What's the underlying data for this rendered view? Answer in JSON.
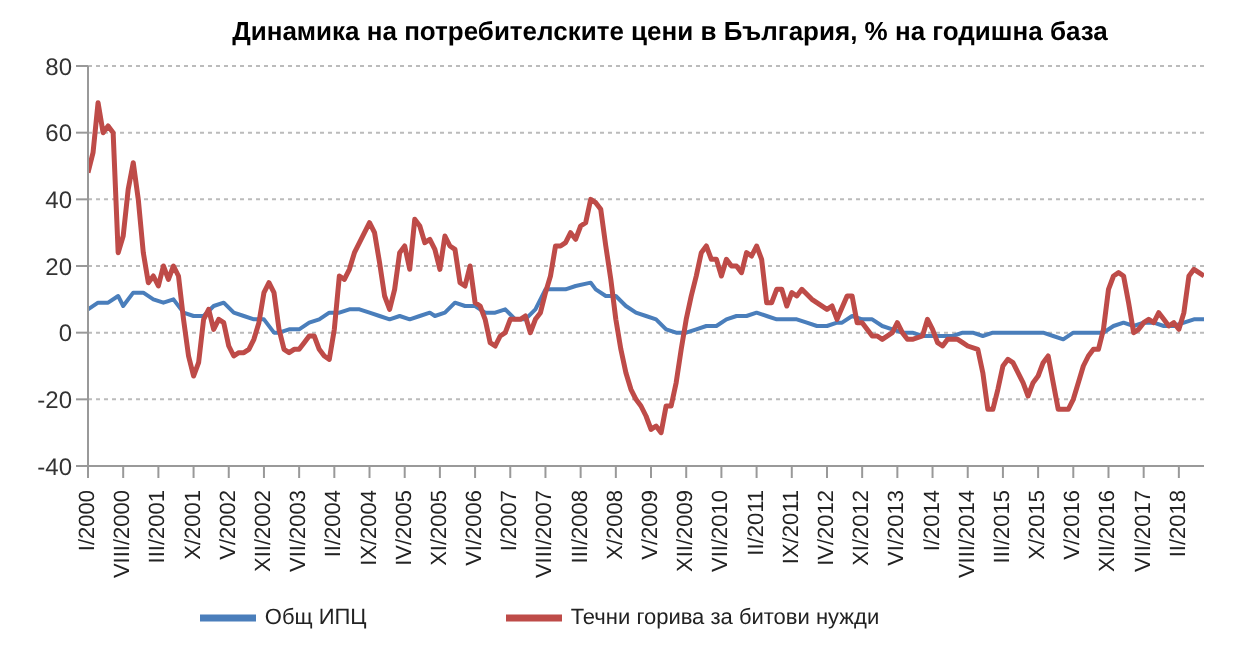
{
  "chart_data": {
    "type": "line",
    "title": "Динамика на потребителските цени в България, % на годишна база",
    "xlim": [
      "2000-01",
      "2018-07"
    ],
    "xticks": [
      {
        "value": "2000-01",
        "label": "I/2000"
      },
      {
        "value": "2000-08",
        "label": "VIII/2000"
      },
      {
        "value": "2001-03",
        "label": "III/2001"
      },
      {
        "value": "2001-10",
        "label": "X/2001"
      },
      {
        "value": "2002-05",
        "label": "V/2002"
      },
      {
        "value": "2002-12",
        "label": "XII/2002"
      },
      {
        "value": "2003-07",
        "label": "VII/2003"
      },
      {
        "value": "2004-02",
        "label": "II/2004"
      },
      {
        "value": "2004-09",
        "label": "IX/2004"
      },
      {
        "value": "2005-04",
        "label": "IV/2005"
      },
      {
        "value": "2005-11",
        "label": "XI/2005"
      },
      {
        "value": "2006-06",
        "label": "VI/2006"
      },
      {
        "value": "2007-01",
        "label": "I/2007"
      },
      {
        "value": "2007-08",
        "label": "VIII/2007"
      },
      {
        "value": "2008-03",
        "label": "III/2008"
      },
      {
        "value": "2008-10",
        "label": "X/2008"
      },
      {
        "value": "2009-05",
        "label": "V/2009"
      },
      {
        "value": "2009-12",
        "label": "XII/2009"
      },
      {
        "value": "2010-07",
        "label": "VII/2010"
      },
      {
        "value": "2011-02",
        "label": "II/2011"
      },
      {
        "value": "2011-09",
        "label": "IX/2011"
      },
      {
        "value": "2012-04",
        "label": "IV/2012"
      },
      {
        "value": "2012-11",
        "label": "XI/2012"
      },
      {
        "value": "2013-06",
        "label": "VI/2013"
      },
      {
        "value": "2014-01",
        "label": "I/2014"
      },
      {
        "value": "2014-08",
        "label": "VIII/2014"
      },
      {
        "value": "2015-03",
        "label": "III/2015"
      },
      {
        "value": "2015-10",
        "label": "X/2015"
      },
      {
        "value": "2016-05",
        "label": "V/2016"
      },
      {
        "value": "2016-12",
        "label": "XII/2016"
      },
      {
        "value": "2017-07",
        "label": "VII/2017"
      },
      {
        "value": "2018-02",
        "label": "II/2018"
      }
    ],
    "ylim": [
      -40,
      80
    ],
    "yticks": [
      -40,
      -20,
      0,
      20,
      40,
      60,
      80
    ],
    "grid": "y",
    "legend": "bottom",
    "marker": "none",
    "line_style": "solid",
    "series": [
      {
        "name": "Общ ИПЦ",
        "color": "#4a7ebb",
        "x": [
          "2000-01",
          "2000-03",
          "2000-05",
          "2000-07",
          "2000-08",
          "2000-10",
          "2000-12",
          "2001-02",
          "2001-04",
          "2001-06",
          "2001-08",
          "2001-10",
          "2001-12",
          "2002-02",
          "2002-04",
          "2002-06",
          "2002-08",
          "2002-10",
          "2002-12",
          "2003-02",
          "2003-03",
          "2003-05",
          "2003-07",
          "2003-09",
          "2003-11",
          "2004-01",
          "2004-03",
          "2004-05",
          "2004-07",
          "2004-09",
          "2004-11",
          "2005-01",
          "2005-03",
          "2005-05",
          "2005-07",
          "2005-09",
          "2005-10",
          "2005-12",
          "2006-02",
          "2006-04",
          "2006-06",
          "2006-08",
          "2006-10",
          "2006-12",
          "2007-02",
          "2007-04",
          "2007-06",
          "2007-08",
          "2007-10",
          "2007-12",
          "2008-02",
          "2008-05",
          "2008-06",
          "2008-08",
          "2008-10",
          "2008-12",
          "2009-02",
          "2009-04",
          "2009-06",
          "2009-08",
          "2009-10",
          "2009-12",
          "2010-02",
          "2010-04",
          "2010-06",
          "2010-08",
          "2010-10",
          "2010-12",
          "2011-02",
          "2011-04",
          "2011-06",
          "2011-08",
          "2011-10",
          "2011-12",
          "2012-02",
          "2012-04",
          "2012-06",
          "2012-07",
          "2012-09",
          "2012-11",
          "2013-01",
          "2013-03",
          "2013-05",
          "2013-07",
          "2013-09",
          "2013-11",
          "2014-01",
          "2014-03",
          "2014-05",
          "2014-07",
          "2014-09",
          "2014-11",
          "2015-01",
          "2015-03",
          "2015-05",
          "2015-07",
          "2015-09",
          "2015-11",
          "2016-01",
          "2016-03",
          "2016-05",
          "2016-07",
          "2016-09",
          "2016-11",
          "2017-01",
          "2017-03",
          "2017-05",
          "2017-07",
          "2017-09",
          "2017-11",
          "2018-01",
          "2018-03",
          "2018-05",
          "2018-07"
        ],
        "values": [
          7,
          9,
          9,
          11,
          8,
          12,
          12,
          10,
          9,
          10,
          6,
          5,
          5,
          8,
          9,
          6,
          5,
          4,
          4,
          0,
          0,
          1,
          1,
          3,
          4,
          6,
          6,
          7,
          7,
          6,
          5,
          4,
          5,
          4,
          5,
          6,
          5,
          6,
          9,
          8,
          8,
          6,
          6,
          7,
          4,
          4,
          7,
          13,
          13,
          13,
          14,
          15,
          13,
          11,
          11,
          8,
          6,
          5,
          4,
          1,
          0,
          0,
          1,
          2,
          2,
          4,
          5,
          5,
          6,
          5,
          4,
          4,
          4,
          3,
          2,
          2,
          3,
          3,
          5,
          4,
          4,
          2,
          1,
          0,
          0,
          -1,
          -1,
          -1,
          -1,
          0,
          0,
          -1,
          0,
          0,
          0,
          0,
          0,
          0,
          -1,
          -2,
          0,
          0,
          0,
          0,
          2,
          3,
          2,
          3,
          3,
          2,
          2,
          3,
          4,
          4
        ]
      },
      {
        "name": "Течни горива за битови нужди",
        "color": "#be4b48",
        "x": [
          "2000-01",
          "2000-02",
          "2000-03",
          "2000-04",
          "2000-05",
          "2000-06",
          "2000-07",
          "2000-08",
          "2000-09",
          "2000-10",
          "2000-11",
          "2000-12",
          "2001-01",
          "2001-02",
          "2001-03",
          "2001-04",
          "2001-05",
          "2001-06",
          "2001-07",
          "2001-08",
          "2001-09",
          "2001-10",
          "2001-11",
          "2001-12",
          "2002-01",
          "2002-02",
          "2002-03",
          "2002-04",
          "2002-05",
          "2002-06",
          "2002-07",
          "2002-08",
          "2002-09",
          "2002-10",
          "2002-11",
          "2002-12",
          "2003-01",
          "2003-02",
          "2003-03",
          "2003-04",
          "2003-05",
          "2003-06",
          "2003-07",
          "2003-08",
          "2003-09",
          "2003-10",
          "2003-11",
          "2003-12",
          "2004-01",
          "2004-02",
          "2004-03",
          "2004-04",
          "2004-05",
          "2004-06",
          "2004-07",
          "2004-08",
          "2004-09",
          "2004-10",
          "2004-11",
          "2004-12",
          "2005-01",
          "2005-02",
          "2005-03",
          "2005-04",
          "2005-05",
          "2005-06",
          "2005-07",
          "2005-08",
          "2005-09",
          "2005-10",
          "2005-11",
          "2005-12",
          "2006-01",
          "2006-02",
          "2006-03",
          "2006-04",
          "2006-05",
          "2006-06",
          "2006-07",
          "2006-08",
          "2006-09",
          "2006-10",
          "2006-11",
          "2006-12",
          "2007-01",
          "2007-02",
          "2007-03",
          "2007-04",
          "2007-05",
          "2007-06",
          "2007-07",
          "2007-08",
          "2007-09",
          "2007-10",
          "2007-11",
          "2007-12",
          "2008-01",
          "2008-02",
          "2008-03",
          "2008-04",
          "2008-05",
          "2008-06",
          "2008-07",
          "2008-08",
          "2008-09",
          "2008-10",
          "2008-11",
          "2008-12",
          "2009-01",
          "2009-02",
          "2009-03",
          "2009-04",
          "2009-05",
          "2009-06",
          "2009-07",
          "2009-08",
          "2009-09",
          "2009-10",
          "2009-11",
          "2009-12",
          "2010-01",
          "2010-02",
          "2010-03",
          "2010-04",
          "2010-05",
          "2010-06",
          "2010-07",
          "2010-08",
          "2010-09",
          "2010-10",
          "2010-11",
          "2010-12",
          "2011-01",
          "2011-02",
          "2011-03",
          "2011-04",
          "2011-05",
          "2011-06",
          "2011-07",
          "2011-08",
          "2011-09",
          "2011-10",
          "2011-11",
          "2012-01",
          "2012-04",
          "2012-05",
          "2012-06",
          "2012-08",
          "2012-09",
          "2012-10",
          "2012-11",
          "2013-01",
          "2013-02",
          "2013-03",
          "2013-05",
          "2013-06",
          "2013-07",
          "2013-08",
          "2013-09",
          "2013-11",
          "2013-12",
          "2014-01",
          "2014-02",
          "2014-03",
          "2014-04",
          "2014-05",
          "2014-06",
          "2014-07",
          "2014-08",
          "2014-10",
          "2014-11",
          "2014-12",
          "2015-01",
          "2015-02",
          "2015-03",
          "2015-04",
          "2015-05",
          "2015-06",
          "2015-07",
          "2015-08",
          "2015-09",
          "2015-10",
          "2015-11",
          "2015-12",
          "2016-01",
          "2016-02",
          "2016-03",
          "2016-04",
          "2016-05",
          "2016-06",
          "2016-07",
          "2016-08",
          "2016-09",
          "2016-10",
          "2016-11",
          "2016-12",
          "2017-01",
          "2017-02",
          "2017-03",
          "2017-04",
          "2017-05",
          "2017-06",
          "2017-07",
          "2017-08",
          "2017-09",
          "2017-10",
          "2017-11",
          "2017-12",
          "2018-01",
          "2018-02",
          "2018-03",
          "2018-04",
          "2018-05",
          "2018-06",
          "2018-07"
        ],
        "values": [
          48,
          54,
          69,
          60,
          62,
          60,
          24,
          29,
          43,
          51,
          40,
          24,
          15,
          17,
          14,
          20,
          16,
          20,
          17,
          4,
          -7,
          -13,
          -9,
          4,
          7,
          1,
          4,
          3,
          -4,
          -7,
          -6,
          -6,
          -5,
          -2,
          3,
          12,
          15,
          12,
          1,
          -5,
          -6,
          -5,
          -5,
          -3,
          -1,
          -1,
          -5,
          -7,
          -8,
          1,
          17,
          16,
          19,
          24,
          27,
          30,
          33,
          30,
          21,
          11,
          7,
          13,
          24,
          26,
          19,
          34,
          32,
          27,
          28,
          25,
          19,
          29,
          26,
          25,
          15,
          14,
          20,
          9,
          8,
          4,
          -3,
          -4,
          -1,
          0,
          4,
          4,
          4,
          5,
          0,
          4,
          6,
          12,
          17,
          26,
          26,
          27,
          30,
          28,
          32,
          33,
          40,
          39,
          37,
          26,
          16,
          4,
          -5,
          -12,
          -17,
          -20,
          -22,
          -25,
          -29,
          -28,
          -30,
          -22,
          -22,
          -15,
          -5,
          4,
          11,
          17,
          24,
          26,
          22,
          22,
          17,
          22,
          20,
          20,
          18,
          24,
          23,
          26,
          22,
          9,
          9,
          13,
          13,
          8,
          12,
          11,
          13,
          10,
          7,
          8,
          4,
          11,
          11,
          3,
          3,
          -1,
          -1,
          -2,
          0,
          3,
          0,
          -2,
          -2,
          -1,
          4,
          1,
          -3,
          -4,
          -2,
          -2,
          -2,
          -3,
          -4,
          -5,
          -12,
          -23,
          -23,
          -17,
          -10,
          -8,
          -9,
          -12,
          -15,
          -19,
          -15,
          -13,
          -9,
          -7,
          -15,
          -23,
          -23,
          -23,
          -20,
          -15,
          -10,
          -7,
          -5,
          -5,
          1,
          13,
          17,
          18,
          17,
          9,
          0,
          1,
          3,
          4,
          3,
          6,
          4,
          2,
          3,
          1,
          6,
          17,
          19,
          18,
          17
        ]
      }
    ]
  }
}
